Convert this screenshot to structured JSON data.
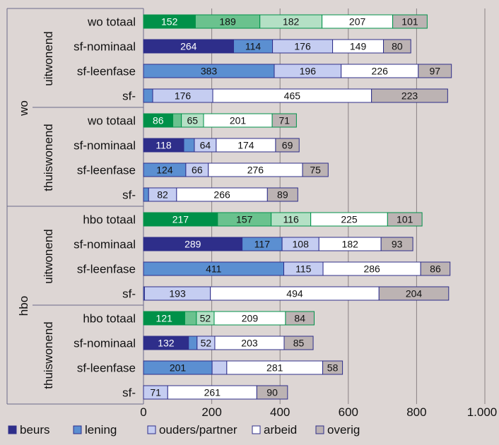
{
  "chart_data": {
    "type": "bar",
    "orientation": "horizontal",
    "stacked": true,
    "xlim": [
      0,
      1000
    ],
    "x_ticks": [
      "0",
      "200",
      "400",
      "600",
      "800",
      "1.000"
    ],
    "grid": true,
    "legend_position": "bottom-left",
    "legend": [
      "beurs",
      "lening",
      "ouders/partner",
      "arbeid",
      "overig"
    ],
    "groups": [
      {
        "name": "wo",
        "subgroups": [
          {
            "name": "uitwonend",
            "rows": [
              {
                "label": "wo totaal",
                "kind": "totaal",
                "values": [
                  152,
                  189,
                  182,
                  207,
                  101
                ]
              },
              {
                "label": "sf-nominaal",
                "kind": "nominaal",
                "values": [
                  264,
                  114,
                  176,
                  149,
                  80
                ]
              },
              {
                "label": "sf-leenfase",
                "kind": "leenfase",
                "values": [
                  0,
                  383,
                  196,
                  226,
                  97
                ]
              },
              {
                "label": "sf-",
                "kind": "sf",
                "values": [
                  0,
                  27,
                  176,
                  465,
                  223
                ]
              }
            ]
          },
          {
            "name": "thuiswonend",
            "rows": [
              {
                "label": "wo totaal",
                "kind": "totaal",
                "values": [
                  86,
                  25,
                  65,
                  201,
                  71
                ]
              },
              {
                "label": "sf-nominaal",
                "kind": "nominaal",
                "values": [
                  118,
                  31,
                  64,
                  174,
                  69
                ]
              },
              {
                "label": "sf-leenfase",
                "kind": "leenfase",
                "values": [
                  0,
                  124,
                  66,
                  276,
                  75
                ]
              },
              {
                "label": "sf-",
                "kind": "sf",
                "values": [
                  0,
                  15,
                  82,
                  266,
                  89
                ]
              }
            ]
          }
        ]
      },
      {
        "name": "hbo",
        "subgroups": [
          {
            "name": "uitwonend",
            "rows": [
              {
                "label": "hbo totaal",
                "kind": "totaal",
                "values": [
                  217,
                  157,
                  116,
                  225,
                  101
                ]
              },
              {
                "label": "sf-nominaal",
                "kind": "nominaal",
                "values": [
                  289,
                  117,
                  108,
                  182,
                  93
                ]
              },
              {
                "label": "sf-leenfase",
                "kind": "leenfase",
                "values": [
                  0,
                  411,
                  115,
                  286,
                  86
                ]
              },
              {
                "label": "sf-",
                "kind": "sf",
                "values": [
                  0,
                  3,
                  193,
                  494,
                  204
                ]
              }
            ]
          },
          {
            "name": "thuiswonend",
            "rows": [
              {
                "label": "hbo totaal",
                "kind": "totaal",
                "values": [
                  121,
                  34,
                  52,
                  209,
                  84
                ]
              },
              {
                "label": "sf-nominaal",
                "kind": "nominaal",
                "values": [
                  132,
                  25,
                  52,
                  203,
                  85
                ]
              },
              {
                "label": "sf-leenfase",
                "kind": "leenfase",
                "values": [
                  0,
                  201,
                  43,
                  281,
                  58
                ]
              },
              {
                "label": "sf-",
                "kind": "sf",
                "values": [
                  0,
                  0,
                  71,
                  261,
                  90
                ]
              }
            ]
          }
        ]
      }
    ],
    "colors": {
      "beurs": "#2e2e8a",
      "lening": "#5b8fd1",
      "ouders": "#c5cdf1",
      "arbeid": "#ffffff",
      "overig": "#bcb3b3",
      "totaal_1": "#009149",
      "totaal_2": "#6ac28e",
      "totaal_3": "#b4e0c5",
      "totaal_4": "#ffffff",
      "totaal_5": "#bcb3b3",
      "edge": "#2e2e8a",
      "edge_totaal": "#009149",
      "grid": "#8a8285",
      "frame": "#6a6a8a"
    }
  }
}
